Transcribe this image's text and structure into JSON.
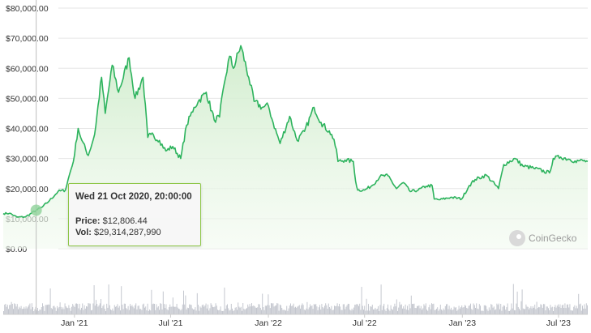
{
  "chart_data": {
    "type": "area",
    "colors": {
      "line": "#2db35d",
      "fill": "#d9f0d5",
      "volume": "#c4c7cf",
      "grid": "#e6e6e6",
      "tooltip_border": "#8dc647"
    },
    "y_ticks": [
      "$80,000.00",
      "$70,000.00",
      "$60,000.00",
      "$50,000.00",
      "$40,000.00",
      "$30,000.00",
      "$20,000.00",
      "$10,000.00",
      "$0.00"
    ],
    "ylim": [
      0,
      80000
    ],
    "x_ticks": [
      "Jan '21",
      "Jul '21",
      "Jan '22",
      "Jul '22",
      "Jan '23",
      "Jul '23"
    ],
    "x_tick_dates": [
      "2021-01-01",
      "2021-07-01",
      "2022-01-01",
      "2022-07-01",
      "2023-01-01",
      "2023-07-01"
    ],
    "x_range": [
      "2020-08-20",
      "2023-08-25"
    ],
    "grid": true,
    "series": [
      {
        "x": [
          "2020-08-20",
          "2020-09-01",
          "2020-09-15",
          "2020-10-01",
          "2020-10-21",
          "2020-11-01",
          "2020-11-15",
          "2020-12-01",
          "2020-12-15",
          "2020-12-20",
          "2020-12-30",
          "2021-01-08",
          "2021-01-15",
          "2021-01-27",
          "2021-02-08",
          "2021-02-21",
          "2021-02-28",
          "2021-03-13",
          "2021-03-25",
          "2021-04-14",
          "2021-04-25",
          "2021-05-10",
          "2021-05-19",
          "2021-05-25",
          "2021-06-10",
          "2021-06-22",
          "2021-07-05",
          "2021-07-20",
          "2021-07-31",
          "2021-08-14",
          "2021-08-22",
          "2021-09-06",
          "2021-09-21",
          "2021-10-01",
          "2021-10-10",
          "2021-10-20",
          "2021-10-27",
          "2021-11-10",
          "2021-11-25",
          "2021-12-05",
          "2021-12-20",
          "2022-01-01",
          "2022-01-10",
          "2022-01-23",
          "2022-02-10",
          "2022-02-24",
          "2022-03-10",
          "2022-03-28",
          "2022-04-10",
          "2022-04-30",
          "2022-05-09",
          "2022-05-12",
          "2022-05-25",
          "2022-06-10",
          "2022-06-14",
          "2022-06-18",
          "2022-07-01",
          "2022-07-15",
          "2022-07-30",
          "2022-08-14",
          "2022-08-30",
          "2022-09-12",
          "2022-09-25",
          "2022-10-10",
          "2022-10-25",
          "2022-11-05",
          "2022-11-09",
          "2022-11-20",
          "2022-12-10",
          "2022-12-31",
          "2023-01-14",
          "2023-01-25",
          "2023-02-15",
          "2023-03-10",
          "2023-03-20",
          "2023-04-10",
          "2023-04-25",
          "2023-05-15",
          "2023-06-14",
          "2023-06-21",
          "2023-07-05",
          "2023-07-20",
          "2023-08-01",
          "2023-08-10",
          "2023-08-25"
        ],
        "y": [
          11700,
          11800,
          10500,
          10600,
          12806,
          13800,
          16000,
          19000,
          19500,
          23000,
          29000,
          40000,
          36000,
          31000,
          38000,
          57000,
          45000,
          61000,
          52000,
          63500,
          50000,
          57000,
          37000,
          38000,
          36000,
          32500,
          34000,
          30000,
          41000,
          47000,
          49000,
          52000,
          42800,
          43800,
          55000,
          64000,
          60000,
          67500,
          57000,
          49000,
          47000,
          47500,
          41800,
          35000,
          44000,
          36000,
          39000,
          47000,
          42000,
          38000,
          33000,
          29000,
          29500,
          29000,
          22500,
          19500,
          19500,
          21000,
          24000,
          24300,
          20000,
          22000,
          19000,
          19500,
          20800,
          21000,
          16500,
          16300,
          17100,
          16600,
          21000,
          23000,
          24500,
          20000,
          28000,
          30000,
          27500,
          26800,
          25200,
          30000,
          30500,
          29800,
          29200,
          29300,
          29000
        ]
      }
    ],
    "volume_note": "24h volume bars along bottom",
    "tooltip": {
      "date": "Wed 21 Oct 2020, 20:00:00",
      "price_label": "Price:",
      "price_value": "$12,806.44",
      "vol_label": "Vol:",
      "vol_value": "$29,314,287,990"
    },
    "watermark": "CoinGecko"
  }
}
